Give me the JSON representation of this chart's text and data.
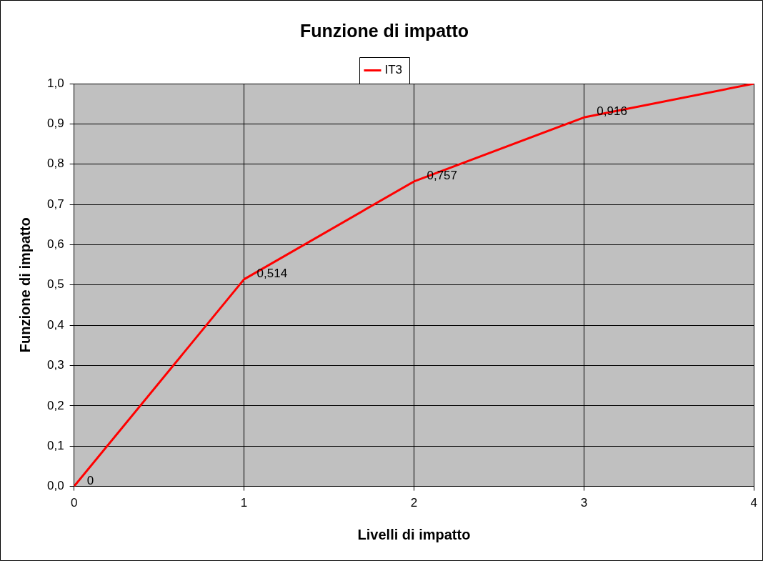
{
  "chart_data": {
    "type": "line",
    "title": "Funzione di impatto",
    "xlabel": "Livelli di impatto",
    "ylabel": "Funzione di impatto",
    "x": [
      0,
      1,
      2,
      3,
      4
    ],
    "series": [
      {
        "name": "IT3",
        "color": "#ff0000",
        "values": [
          0,
          0.514,
          0.757,
          0.916,
          1
        ],
        "value_labels": [
          "0",
          "0,514",
          "0,757",
          "0,916",
          null
        ]
      }
    ],
    "xlim": [
      0,
      4
    ],
    "xticks": [
      0,
      1,
      2,
      3,
      4
    ],
    "ylim": [
      0,
      1
    ],
    "yticks": [
      {
        "value": 0,
        "label": "0,0"
      },
      {
        "value": 0.1,
        "label": "0,1"
      },
      {
        "value": 0.2,
        "label": "0,2"
      },
      {
        "value": 0.3,
        "label": "0,3"
      },
      {
        "value": 0.4,
        "label": "0,4"
      },
      {
        "value": 0.5,
        "label": "0,5"
      },
      {
        "value": 0.6,
        "label": "0,6"
      },
      {
        "value": 0.7,
        "label": "0,7"
      },
      {
        "value": 0.8,
        "label": "0,8"
      },
      {
        "value": 0.9,
        "label": "0,9"
      },
      {
        "value": 1,
        "label": "1,0"
      }
    ],
    "grid": true,
    "legend": "top",
    "marker": "none",
    "line_style": "solid"
  }
}
